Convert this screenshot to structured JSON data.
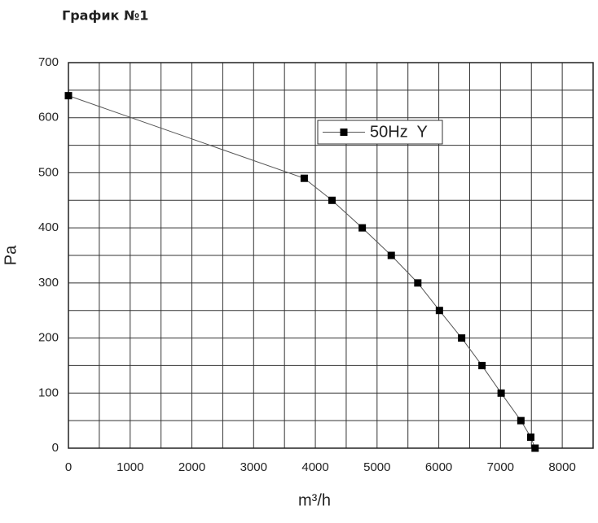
{
  "page_title": "График №1",
  "chart_data": {
    "type": "line",
    "x_label": "m³/h",
    "y_label": "Pa",
    "x": [
      0,
      3820,
      4270,
      4760,
      5230,
      5660,
      6010,
      6370,
      6700,
      7010,
      7330,
      7490,
      7560
    ],
    "series": [
      {
        "name": "50Hz  Y",
        "color": "#555555",
        "values": [
          640,
          490,
          450,
          400,
          350,
          300,
          250,
          200,
          150,
          100,
          50,
          20,
          0
        ]
      }
    ],
    "xlim": [
      0,
      8500
    ],
    "ylim": [
      0,
      700
    ],
    "xticks": [
      0,
      1000,
      2000,
      3000,
      4000,
      5000,
      6000,
      7000,
      8000
    ],
    "yticks": [
      0,
      100,
      200,
      300,
      400,
      500,
      600,
      700
    ],
    "minor_xticks": [
      500,
      1500,
      2500,
      3500,
      4500,
      5500,
      6500,
      7500,
      8500
    ],
    "minor_yticks": [
      50,
      150,
      250,
      350,
      450,
      550,
      650
    ],
    "grid": true,
    "legend": "upper right"
  }
}
